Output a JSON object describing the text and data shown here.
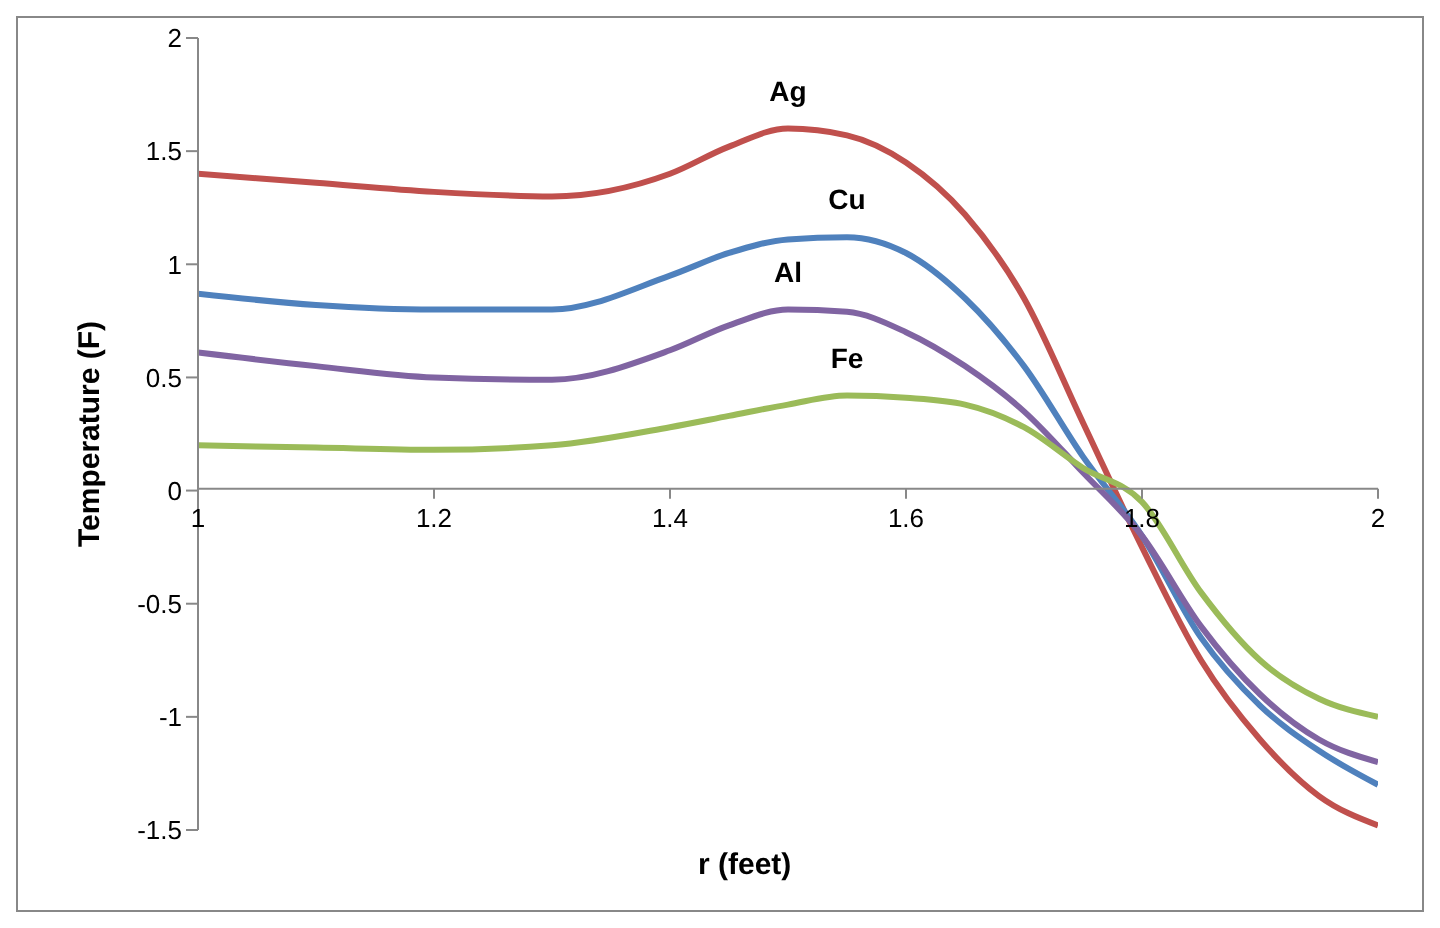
{
  "chart_data": {
    "type": "line",
    "xlabel": "r (feet)",
    "ylabel": "Temperature (F)",
    "x": [
      1,
      1.1,
      1.2,
      1.3,
      1.4,
      1.45,
      1.5,
      1.55,
      1.6,
      1.65,
      1.7,
      1.75,
      1.8,
      1.85,
      1.9,
      1.95,
      2
    ],
    "series": [
      {
        "name": "Ag",
        "color": "#c0504d",
        "values": [
          1.4,
          1.36,
          1.32,
          1.3,
          1.4,
          1.52,
          1.6,
          1.57,
          1.45,
          1.22,
          0.85,
          0.3,
          -0.25,
          -0.75,
          -1.1,
          -1.35,
          -1.48
        ]
      },
      {
        "name": "Cu",
        "color": "#4f81bd",
        "values": [
          0.87,
          0.82,
          0.8,
          0.8,
          0.95,
          1.05,
          1.11,
          1.12,
          1.05,
          0.85,
          0.55,
          0.15,
          -0.2,
          -0.65,
          -0.95,
          -1.15,
          -1.3
        ]
      },
      {
        "name": "Al",
        "color": "#8064a2",
        "values": [
          0.61,
          0.55,
          0.5,
          0.49,
          0.62,
          0.73,
          0.8,
          0.79,
          0.7,
          0.55,
          0.35,
          0.08,
          -0.2,
          -0.6,
          -0.9,
          -1.1,
          -1.2
        ]
      },
      {
        "name": "Fe",
        "color": "#9bbb59",
        "values": [
          0.2,
          0.19,
          0.18,
          0.2,
          0.28,
          0.33,
          0.38,
          0.42,
          0.41,
          0.38,
          0.28,
          0.1,
          -0.05,
          -0.45,
          -0.75,
          -0.92,
          -1.0
        ]
      }
    ],
    "xlim": [
      1,
      2
    ],
    "xticks": [
      1,
      1.2,
      1.4,
      1.6,
      1.8,
      2
    ],
    "ylim": [
      -1.5,
      2
    ],
    "yticks": [
      -1.5,
      -1,
      -0.5,
      0,
      0.5,
      1,
      1.5,
      2
    ],
    "grid": false,
    "legend": false,
    "marker": "none",
    "line_style": "solid"
  }
}
